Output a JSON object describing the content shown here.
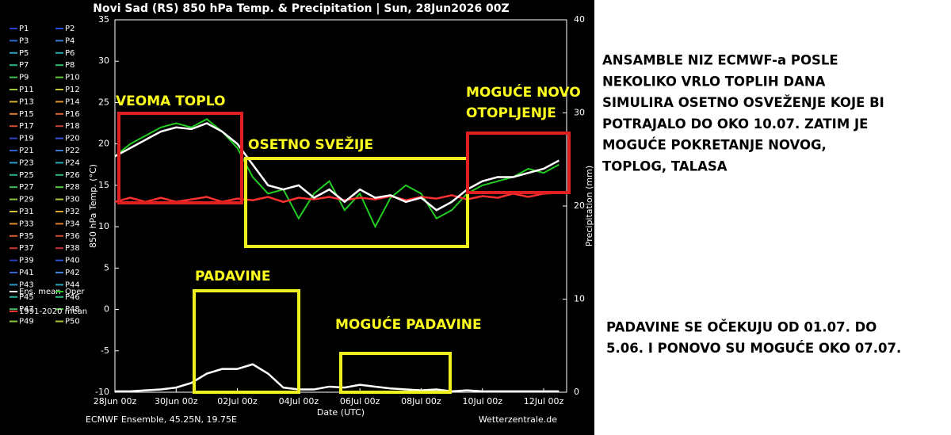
{
  "chart_data": {
    "type": "line",
    "title": "Novi Sad  (RS)  850 hPa Temp. & Precipitation | Sun, 28Jun2026 00Z",
    "y_label": "850 hPa Temp. (°C)",
    "y2_label": "Precipitation (mm)",
    "x_label": "Date (UTC)",
    "footer_left": "ECMWF Ensemble, 45.25N, 19.75E",
    "footer_right": "Wetterzentrale.de",
    "xlim": [
      0,
      354
    ],
    "xticks": [
      {
        "value": 0,
        "label": "28Jun 00z"
      },
      {
        "value": 48,
        "label": "30Jun 00z"
      },
      {
        "value": 96,
        "label": "02Jul 00z"
      },
      {
        "value": 144,
        "label": "04Jul 00z"
      },
      {
        "value": 192,
        "label": "06Jul 00z"
      },
      {
        "value": 240,
        "label": "08Jul 00z"
      },
      {
        "value": 288,
        "label": "10Jul 00z"
      },
      {
        "value": 336,
        "label": "12Jul 00z"
      }
    ],
    "ylim": [
      -10,
      35
    ],
    "yticks": [
      -10,
      -5,
      0,
      5,
      10,
      15,
      20,
      25,
      30,
      35
    ],
    "y2lim": [
      0,
      40
    ],
    "y2ticks": [
      0,
      10,
      20,
      30,
      40
    ],
    "grid": false,
    "x": [
      0,
      12,
      24,
      36,
      48,
      60,
      72,
      84,
      96,
      108,
      120,
      132,
      144,
      156,
      168,
      180,
      192,
      204,
      216,
      228,
      240,
      252,
      264,
      276,
      288,
      300,
      312,
      324,
      336,
      348
    ],
    "series": [
      {
        "name": "Oper",
        "color": "#22cc22",
        "values": [
          18.5,
          20,
          21,
          22,
          22.5,
          22,
          23,
          21.5,
          19.5,
          16,
          14,
          14.5,
          11,
          14,
          15.5,
          12,
          14,
          10,
          13.5,
          15,
          14,
          11,
          12,
          14,
          15,
          15.5,
          16,
          17,
          16.5,
          17.5
        ]
      },
      {
        "name": "1991-2020 mean",
        "color": "#ff3030",
        "values": [
          13,
          13.5,
          13,
          13.5,
          13,
          13.3,
          13.6,
          13,
          13.4,
          13.2,
          13.6,
          13,
          13.5,
          13.3,
          13.6,
          13.2,
          13.5,
          13.3,
          13.7,
          13.2,
          13.6,
          13.4,
          13.8,
          13.3,
          13.7,
          13.5,
          14,
          13.6,
          14,
          14.1
        ]
      },
      {
        "name": "Ens. mean",
        "color": "#ffffff",
        "values": [
          18.5,
          19.5,
          20.5,
          21.5,
          22,
          21.8,
          22.5,
          21.5,
          20,
          17.5,
          15,
          14.5,
          15,
          13.5,
          14.5,
          13,
          14.5,
          13.5,
          13.8,
          13,
          13.5,
          12,
          13,
          14.5,
          15.5,
          16,
          16,
          16.5,
          17,
          18
        ]
      },
      {
        "name": "Ens. mean",
        "color": "#ffffff",
        "axis": "y2",
        "values": [
          0.1,
          0.1,
          0.2,
          0.3,
          0.5,
          1,
          2,
          2.5,
          2.5,
          3,
          2,
          0.5,
          0.3,
          0.3,
          0.6,
          0.5,
          0.8,
          0.6,
          0.4,
          0.3,
          0.2,
          0.3,
          0.1,
          0.2,
          0.1,
          0.1,
          0.1,
          0.1,
          0.1,
          0.1
        ]
      }
    ],
    "members": [
      {
        "name": "P1",
        "color": "#2a3cc8"
      },
      {
        "name": "P2",
        "color": "#2a4ad8"
      },
      {
        "name": "P3",
        "color": "#2e6ad0"
      },
      {
        "name": "P4",
        "color": "#3a7ad8"
      },
      {
        "name": "P5",
        "color": "#2aa0c0"
      },
      {
        "name": "P6",
        "color": "#30a8b0"
      },
      {
        "name": "P7",
        "color": "#2ab08a"
      },
      {
        "name": "P8",
        "color": "#30c070"
      },
      {
        "name": "P9",
        "color": "#40c050"
      },
      {
        "name": "P10",
        "color": "#60c840"
      },
      {
        "name": "P11",
        "color": "#a0c840"
      },
      {
        "name": "P12",
        "color": "#c8c840"
      },
      {
        "name": "P13",
        "color": "#d8b030"
      },
      {
        "name": "P14",
        "color": "#e09830"
      },
      {
        "name": "P15",
        "color": "#e08030"
      },
      {
        "name": "P16",
        "color": "#d86a30"
      },
      {
        "name": "P17",
        "color": "#d05030"
      },
      {
        "name": "P18",
        "color": "#c84040"
      },
      {
        "name": "P19",
        "color": "#3040c0"
      },
      {
        "name": "P20",
        "color": "#3a50d0"
      },
      {
        "name": "P21",
        "color": "#3060c8"
      },
      {
        "name": "P22",
        "color": "#3878d0"
      },
      {
        "name": "P23",
        "color": "#2aa0c8"
      },
      {
        "name": "P24",
        "color": "#30a8b8"
      },
      {
        "name": "P25",
        "color": "#2ab090"
      },
      {
        "name": "P26",
        "color": "#30b878"
      },
      {
        "name": "P27",
        "color": "#40c058"
      },
      {
        "name": "P28",
        "color": "#58c840"
      },
      {
        "name": "P29",
        "color": "#90c840"
      },
      {
        "name": "P30",
        "color": "#b8c840"
      },
      {
        "name": "P31",
        "color": "#d0c038"
      },
      {
        "name": "P32",
        "color": "#d8a830"
      },
      {
        "name": "P33",
        "color": "#e09030"
      },
      {
        "name": "P34",
        "color": "#e07830"
      },
      {
        "name": "P35",
        "color": "#d86030"
      },
      {
        "name": "P36",
        "color": "#d04838"
      },
      {
        "name": "P37",
        "color": "#c83838"
      },
      {
        "name": "P38",
        "color": "#c03040"
      },
      {
        "name": "P39",
        "color": "#2a3cc0"
      },
      {
        "name": "P40",
        "color": "#3050d0"
      },
      {
        "name": "P41",
        "color": "#3068d0"
      },
      {
        "name": "P42",
        "color": "#3880d8"
      },
      {
        "name": "P43",
        "color": "#2a98c8"
      },
      {
        "name": "P44",
        "color": "#30a8b8"
      },
      {
        "name": "P45",
        "color": "#2ab098"
      },
      {
        "name": "P46",
        "color": "#30b880"
      },
      {
        "name": "P47",
        "color": "#40c060"
      },
      {
        "name": "P48",
        "color": "#50c848"
      },
      {
        "name": "P49",
        "color": "#88c840"
      },
      {
        "name": "P50",
        "color": "#b0c840"
      }
    ]
  },
  "annotations": [
    {
      "text": "VEOMA TOPLO",
      "box_color": "#e02020"
    },
    {
      "text": "OSETNO SVEŽIJE",
      "box_color": "#f0f020"
    },
    {
      "text": "MOGUĆE NOVO",
      "box_color": "#e02020"
    },
    {
      "text": "OTOPLJENJE"
    },
    {
      "text": "PADAVINE",
      "box_color": "#f0f020"
    },
    {
      "text": "MOGUĆE PADAVINE",
      "box_color": "#f0f020"
    }
  ],
  "notes": [
    [
      "ANSAMBLE NIZ ECMWF-a POSLE",
      "NEKOLIKO VRLO TOPLIH DANA",
      "SIMULIRA OSETNO OSVEŽENJE KOJE BI",
      "POTRAJALO DO OKO 10.07. ZATIM JE",
      "MOGUĆE POKRETANJE NOVOG,",
      "TOPLOG, TALASA"
    ],
    [
      "PADAVINE SE OČEKUJU OD 01.07. DO",
      "5.06. I PONOVO SU MOGUĆE OKO 07.07."
    ]
  ]
}
